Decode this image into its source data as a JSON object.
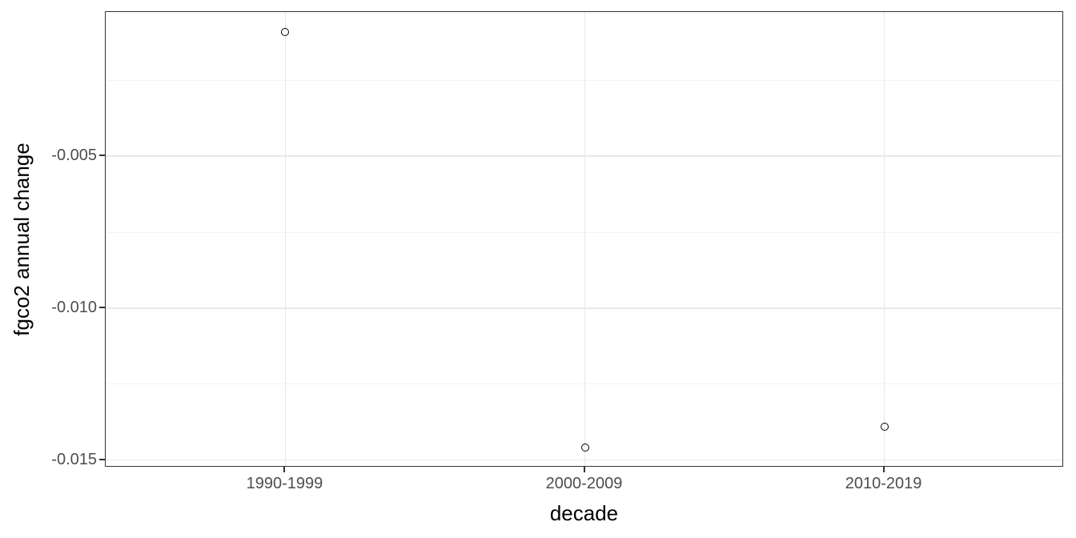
{
  "figure": {
    "background": "#ffffff",
    "panel_border_color": "#333333",
    "panel_background": "#ffffff",
    "grid_major_color": "#e8e8e8",
    "grid_minor_color": "#f2f2f2",
    "tick_mark_color": "#333333",
    "tick_label_color": "#4d4d4d",
    "axis_title_color": "#000000",
    "point_color": "#000000"
  },
  "chart_data": {
    "type": "scatter",
    "title": "",
    "xlabel": "decade",
    "ylabel": "fgco2 annual change",
    "categories": [
      "1990-1999",
      "2000-2009",
      "2010-2019"
    ],
    "values": [
      -0.0009,
      -0.0146,
      -0.0139
    ],
    "ylim": [
      -0.01525,
      -0.00025
    ],
    "y_major_ticks": [
      -0.005,
      -0.01,
      -0.015
    ],
    "y_major_tick_labels": [
      "-0.005",
      "-0.010",
      "-0.015"
    ],
    "y_minor_ticks": [
      -0.0025,
      -0.0075,
      -0.0125
    ],
    "x_band_expansion": 0.6,
    "point_style": "open-circle",
    "grid": "on",
    "legend": "none"
  }
}
